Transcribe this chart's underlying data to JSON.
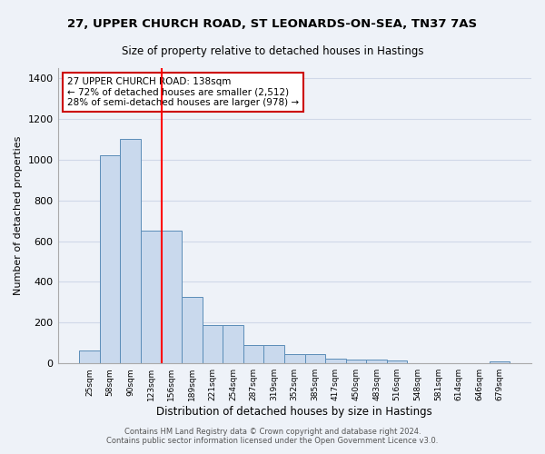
{
  "title_line1": "27, UPPER CHURCH ROAD, ST LEONARDS-ON-SEA, TN37 7AS",
  "title_line2": "Size of property relative to detached houses in Hastings",
  "xlabel": "Distribution of detached houses by size in Hastings",
  "ylabel": "Number of detached properties",
  "bar_labels": [
    "25sqm",
    "58sqm",
    "90sqm",
    "123sqm",
    "156sqm",
    "189sqm",
    "221sqm",
    "254sqm",
    "287sqm",
    "319sqm",
    "352sqm",
    "385sqm",
    "417sqm",
    "450sqm",
    "483sqm",
    "516sqm",
    "548sqm",
    "581sqm",
    "614sqm",
    "646sqm",
    "679sqm"
  ],
  "bar_values": [
    65,
    1020,
    1100,
    650,
    650,
    325,
    190,
    190,
    90,
    90,
    45,
    45,
    25,
    20,
    20,
    13,
    0,
    0,
    0,
    0,
    10
  ],
  "bar_color": "#c9d9ed",
  "bar_edge_color": "#5b8db8",
  "vline_color": "red",
  "ylim": [
    0,
    1450
  ],
  "yticks": [
    0,
    200,
    400,
    600,
    800,
    1000,
    1200,
    1400
  ],
  "annotation_title": "27 UPPER CHURCH ROAD: 138sqm",
  "annotation_line1": "← 72% of detached houses are smaller (2,512)",
  "annotation_line2": "28% of semi-detached houses are larger (978) →",
  "annotation_box_color": "#ffffff",
  "annotation_box_edge": "#cc0000",
  "grid_color": "#d0d8e8",
  "bg_color": "#eef2f8",
  "footnote1": "Contains HM Land Registry data © Crown copyright and database right 2024.",
  "footnote2": "Contains public sector information licensed under the Open Government Licence v3.0."
}
